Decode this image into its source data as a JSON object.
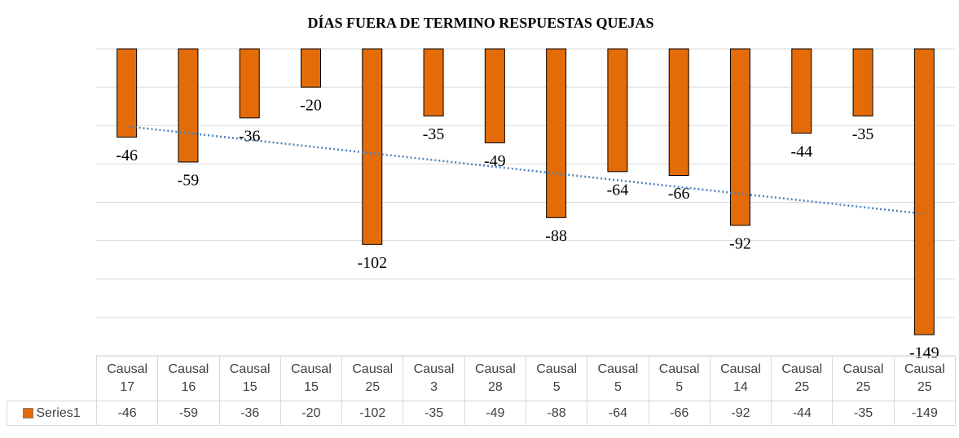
{
  "chart_data": {
    "type": "bar",
    "title": "DÍAS FUERA DE TERMINO RESPUESTAS  QUEJAS",
    "categories": [
      "Causal 17",
      "Causal 16",
      "Causal 15",
      "Causal 15",
      "Causal 25",
      "Causal 3",
      "Causal 28",
      "Causal 5",
      "Causal 5",
      "Causal 5",
      "Causal 14",
      "Causal 25",
      "Causal 25",
      "Causal 25"
    ],
    "series": [
      {
        "name": "Series1",
        "color": "#e36c09",
        "values": [
          -46,
          -59,
          -36,
          -20,
          -102,
          -35,
          -49,
          -88,
          -64,
          -66,
          -92,
          -44,
          -35,
          -149
        ]
      }
    ],
    "ylim": [
      -160,
      0
    ],
    "yticks": [
      0,
      -20,
      -40,
      -60,
      -80,
      -100,
      -120,
      -140,
      -160
    ],
    "grid": true,
    "trendline": "linear",
    "trendline_color": "#4f81bd",
    "data_table": true
  }
}
